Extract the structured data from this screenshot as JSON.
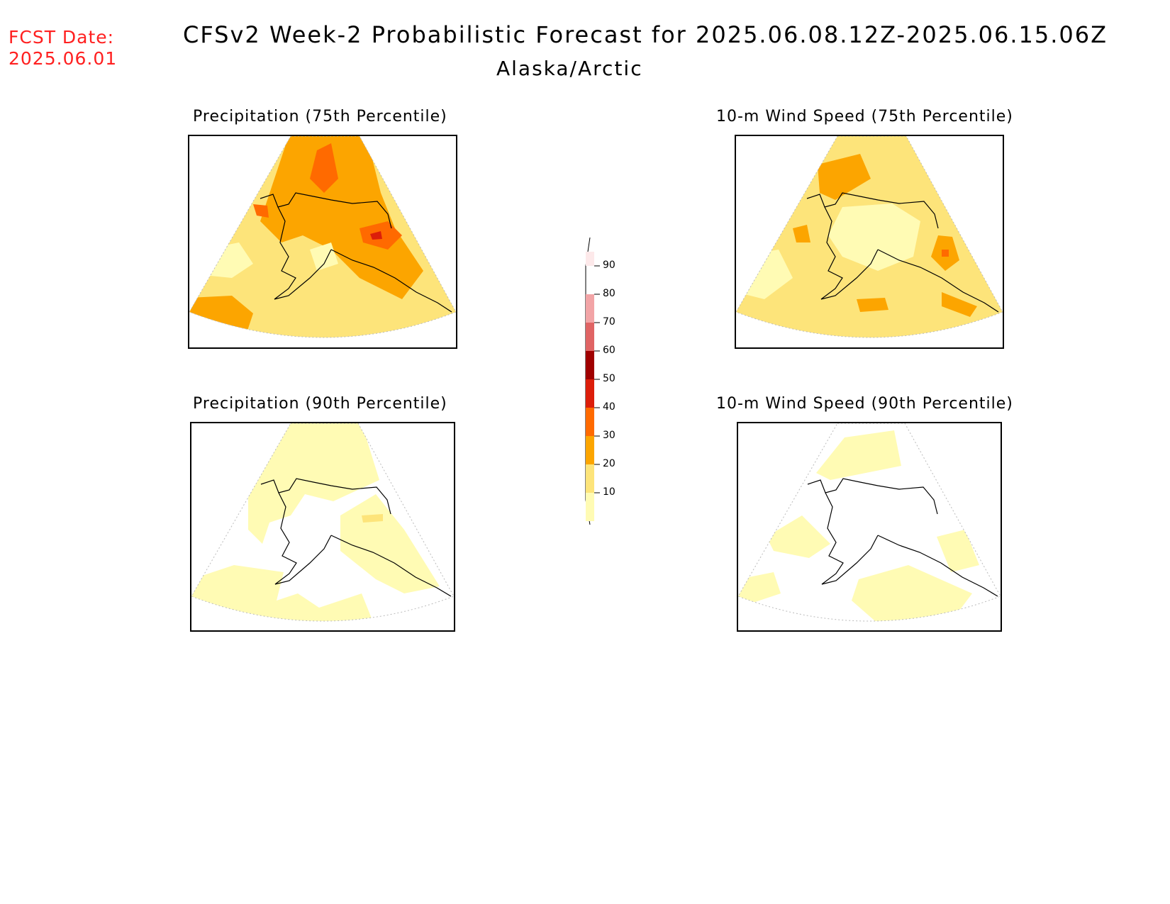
{
  "header": {
    "fcst_label": "FCST Date:",
    "fcst_date": "2025.06.01",
    "title": "CFSv2 Week-2 Probabilistic Forecast for 2025.06.08.12Z-2025.06.15.06Z",
    "subtitle": "Alaska/Arctic"
  },
  "panels": [
    {
      "title": "Precipitation (75th Percentile)"
    },
    {
      "title": "10-m Wind Speed (75th Percentile)"
    },
    {
      "title": "Precipitation (90th Percentile)"
    },
    {
      "title": "10-m Wind Speed (90th Percentile)"
    }
  ],
  "colorbar": {
    "labels": [
      "90",
      "80",
      "70",
      "60",
      "50",
      "40",
      "30",
      "20",
      "10"
    ],
    "colors": [
      "#fde9ea",
      "#f2a4a6",
      "#e06464",
      "#a00000",
      "#dc1e0a",
      "#ff6a00",
      "#fca500",
      "#fde47a",
      "#fffbb4"
    ]
  },
  "legend_colors": {
    "10-20": "#fffbb4",
    "20-30": "#fde47a",
    "30-40": "#fca500",
    "40-50": "#ff6a00",
    "50-60": "#dc1e0a"
  }
}
